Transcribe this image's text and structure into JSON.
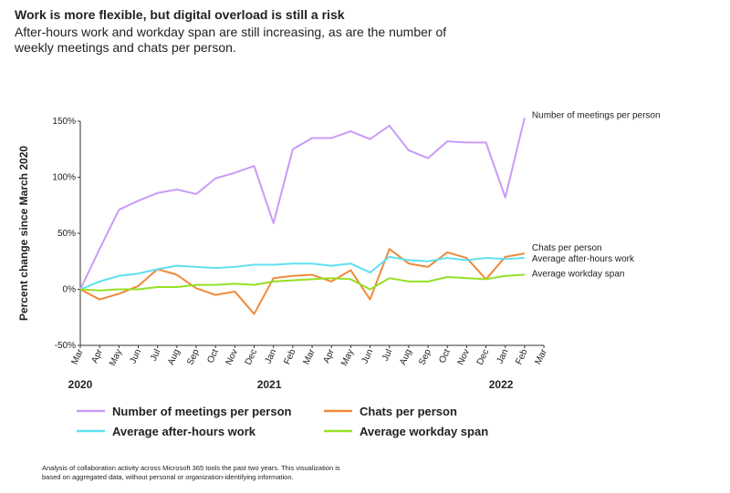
{
  "chart_data": {
    "type": "line",
    "title": "Work is more flexible, but digital overload is still a risk",
    "subtitle": [
      "After-hours work and workday span are still increasing, as are the number of",
      "weekly meetings and chats per person."
    ],
    "y_axis_label": "Percent change since March 2020",
    "categories": [
      "Mar",
      "Apr",
      "May",
      "Jun",
      "Jul",
      "Aug",
      "Sep",
      "Oct",
      "Nov",
      "Dec",
      "Jan",
      "Feb",
      "Mar",
      "Apr",
      "May",
      "Jun",
      "Jul",
      "Aug",
      "Sep",
      "Oct",
      "Nov",
      "Dec",
      "Jan",
      "Feb",
      "Mar"
    ],
    "year_labels": [
      "2020",
      null,
      null,
      null,
      null,
      null,
      null,
      null,
      null,
      null,
      "2021",
      null,
      null,
      null,
      null,
      null,
      null,
      null,
      null,
      null,
      null,
      null,
      "2022",
      null,
      null
    ],
    "ylim": [
      -50,
      150
    ],
    "yticks": [
      {
        "value": -50,
        "label": "-50%"
      },
      {
        "value": 0,
        "label": "0%"
      },
      {
        "value": 50,
        "label": "50%"
      },
      {
        "value": 100,
        "label": "100%"
      },
      {
        "value": 150,
        "label": "150%"
      }
    ],
    "grid": false,
    "series": [
      {
        "name": "Number of meetings per person",
        "color": "#c99cf7",
        "values": [
          0,
          36,
          71,
          79,
          86,
          89,
          85,
          99,
          104,
          110,
          59,
          125,
          135,
          135,
          141,
          134,
          146,
          124,
          117,
          132,
          131,
          131,
          82,
          153,
          null
        ]
      },
      {
        "name": "Chats per person",
        "color": "#f08a3a",
        "values": [
          0,
          -9,
          -4,
          3,
          18,
          13,
          1,
          -5,
          -2,
          -22,
          10,
          12,
          13,
          7,
          17,
          -9,
          36,
          23,
          20,
          33,
          28,
          9,
          29,
          32,
          null
        ]
      },
      {
        "name": "Average after-hours work",
        "color": "#5ee0f0",
        "values": [
          0,
          7,
          12,
          14,
          18,
          21,
          20,
          19,
          20,
          22,
          22,
          23,
          23,
          21,
          23,
          15,
          29,
          26,
          25,
          28,
          26,
          28,
          27,
          28,
          null
        ]
      },
      {
        "name": "Average workday span",
        "color": "#94e026",
        "values": [
          0,
          -1,
          0,
          0,
          2,
          2,
          4,
          4,
          5,
          4,
          7,
          8,
          9,
          10,
          9,
          0,
          10,
          7,
          7,
          11,
          10,
          9,
          12,
          13,
          null
        ]
      }
    ],
    "footnote": [
      "Analysis of collaboration activity across Microsoft 365 tools the past two years. This visualization is",
      "based on aggregated data, without personal or organization-identifying information."
    ]
  }
}
